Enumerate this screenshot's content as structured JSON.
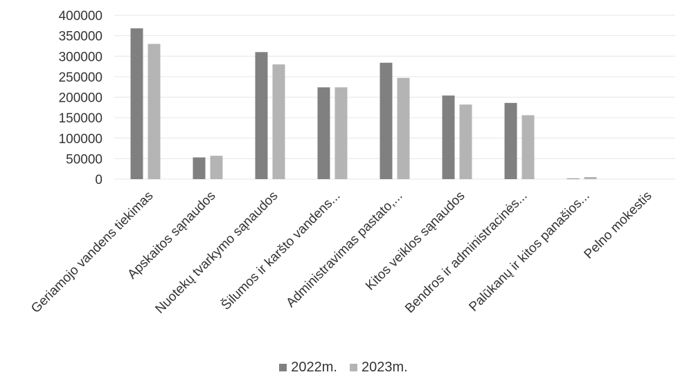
{
  "chart_data": {
    "type": "bar",
    "title": "",
    "xlabel": "",
    "ylabel": "",
    "ylim": [
      0,
      400000
    ],
    "yticks": [
      0,
      50000,
      100000,
      150000,
      200000,
      250000,
      300000,
      350000,
      400000
    ],
    "ytick_labels": [
      "0",
      "50000",
      "100000",
      "150000",
      "200000",
      "250000",
      "300000",
      "350000",
      "400000"
    ],
    "grid": true,
    "legend_position": "bottom",
    "categories": [
      "Geriamojo vandens tiekimas",
      "Apskaitos sąnaudos",
      "Nuotekų tvarkymo sąnaudos",
      "Šilumos ir karšto vandens...",
      "Administravimas pastato,...",
      "Kitos veiklos sąnaudos",
      "Bendros ir administracinės...",
      "Palūkanų ir kitos panašios...",
      "Pelno mokestis"
    ],
    "series": [
      {
        "name": "2022m.",
        "color": "#808080",
        "values": [
          368000,
          53000,
          310000,
          224000,
          284000,
          204000,
          186000,
          1500,
          0
        ]
      },
      {
        "name": "2023m.",
        "color": "#b4b4b4",
        "values": [
          330000,
          57000,
          280000,
          224000,
          247000,
          182000,
          156000,
          5000,
          0
        ]
      }
    ]
  }
}
